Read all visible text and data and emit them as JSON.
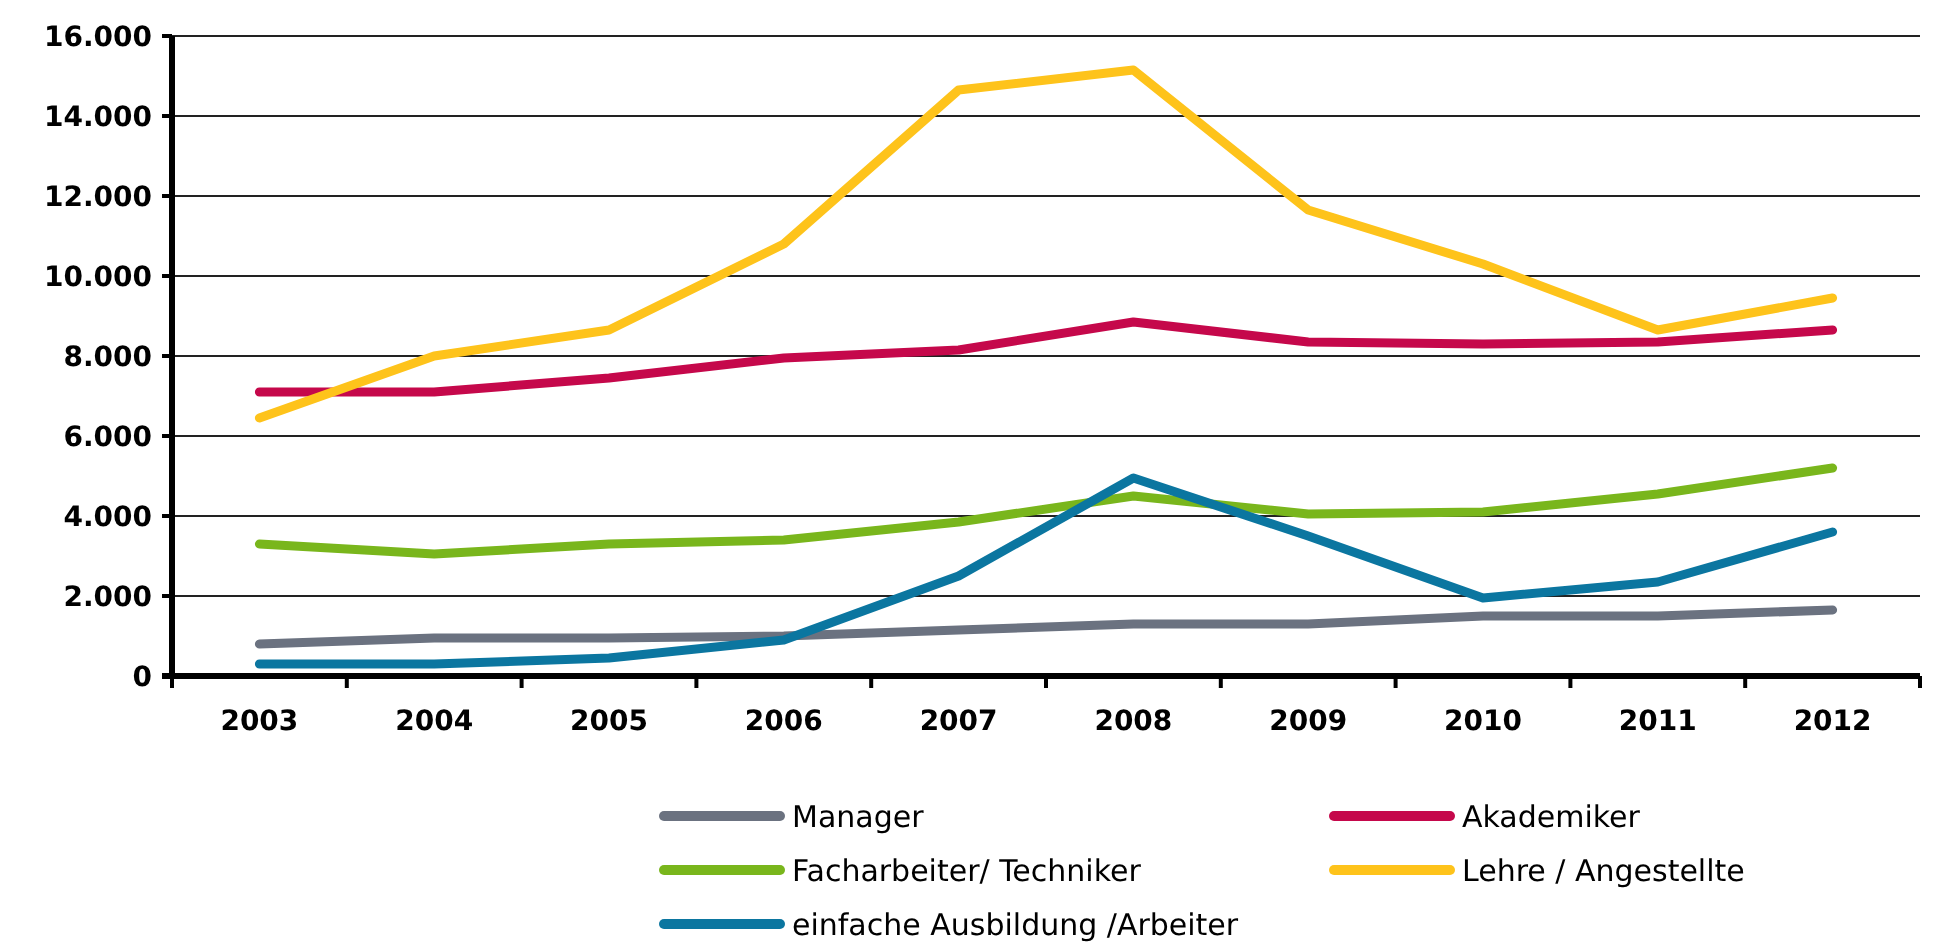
{
  "chart_data": {
    "type": "line",
    "categories": [
      "2003",
      "2004",
      "2005",
      "2006",
      "2007",
      "2008",
      "2009",
      "2010",
      "2011",
      "2012"
    ],
    "ylim": [
      0,
      16000
    ],
    "yticks": [
      {
        "value": 0,
        "label": "0"
      },
      {
        "value": 2000,
        "label": "2.000"
      },
      {
        "value": 4000,
        "label": "4.000"
      },
      {
        "value": 6000,
        "label": "6.000"
      },
      {
        "value": 8000,
        "label": "8.000"
      },
      {
        "value": 10000,
        "label": "10.000"
      },
      {
        "value": 12000,
        "label": "12.000"
      },
      {
        "value": 14000,
        "label": "14.000"
      },
      {
        "value": 16000,
        "label": "16.000"
      }
    ],
    "grid": "y",
    "legend": "bottom",
    "marker": "none",
    "line_style": "solid",
    "series": [
      {
        "name": "Manager",
        "color": "#6b7280",
        "values": [
          800,
          950,
          950,
          1000,
          1150,
          1300,
          1300,
          1500,
          1500,
          1650
        ]
      },
      {
        "name": "Akademiker",
        "color": "#c5084b",
        "values": [
          7100,
          7100,
          7450,
          7950,
          8150,
          8850,
          8350,
          8300,
          8350,
          8650
        ]
      },
      {
        "name": "Facharbeiter/ Techniker",
        "color": "#79b61c",
        "values": [
          3300,
          3050,
          3300,
          3400,
          3850,
          4500,
          4050,
          4100,
          4550,
          5200
        ]
      },
      {
        "name": "Lehre / Angestellte",
        "color": "#fec31b",
        "values": [
          6450,
          8000,
          8650,
          10800,
          14650,
          15150,
          11650,
          10300,
          8650,
          9450
        ]
      },
      {
        "name": "einfache Ausbildung /Arbeiter",
        "color": "#0b76a0",
        "values": [
          300,
          300,
          450,
          900,
          2500,
          4950,
          3500,
          1950,
          2350,
          3600
        ]
      }
    ]
  }
}
